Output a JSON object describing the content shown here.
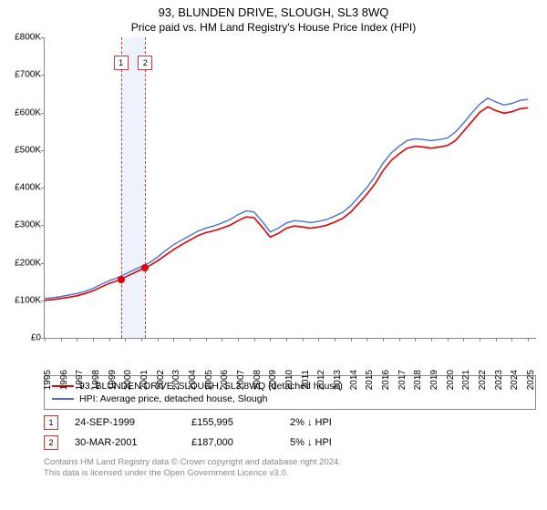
{
  "title": "93, BLUNDEN DRIVE, SLOUGH, SL3 8WQ",
  "subtitle": "Price paid vs. HM Land Registry's House Price Index (HPI)",
  "chart": {
    "type": "line",
    "xlim": [
      1995,
      2025.5
    ],
    "ylim": [
      0,
      800000
    ],
    "ytick_step": 100000,
    "yticks": [
      "£0",
      "£100K",
      "£200K",
      "£300K",
      "£400K",
      "£500K",
      "£600K",
      "£700K",
      "£800K"
    ],
    "xticks": [
      1995,
      1996,
      1997,
      1998,
      1999,
      2000,
      2001,
      2002,
      2003,
      2004,
      2005,
      2006,
      2007,
      2008,
      2009,
      2010,
      2011,
      2012,
      2013,
      2014,
      2015,
      2016,
      2017,
      2018,
      2019,
      2020,
      2021,
      2022,
      2023,
      2024,
      2025
    ],
    "background_color": "#ffffff",
    "grid_color": "#888888",
    "band_color": "#eef2fb",
    "band_range": [
      1999.73,
      2001.25
    ],
    "series": [
      {
        "name": "93, BLUNDEN DRIVE, SLOUGH, SL3 8WQ (detached house)",
        "color": "#e40000",
        "line_width": 1.6,
        "points": [
          [
            1995.0,
            100000
          ],
          [
            1995.5,
            102000
          ],
          [
            1996.0,
            105000
          ],
          [
            1996.5,
            108000
          ],
          [
            1997.0,
            112000
          ],
          [
            1997.5,
            118000
          ],
          [
            1998.0,
            125000
          ],
          [
            1998.5,
            135000
          ],
          [
            1999.0,
            145000
          ],
          [
            1999.5,
            152000
          ],
          [
            1999.73,
            155995
          ],
          [
            2000.0,
            162000
          ],
          [
            2000.5,
            172000
          ],
          [
            2001.0,
            182000
          ],
          [
            2001.25,
            187000
          ],
          [
            2001.5,
            192000
          ],
          [
            2002.0,
            205000
          ],
          [
            2002.5,
            220000
          ],
          [
            2003.0,
            235000
          ],
          [
            2003.5,
            248000
          ],
          [
            2004.0,
            260000
          ],
          [
            2004.5,
            272000
          ],
          [
            2005.0,
            280000
          ],
          [
            2005.5,
            285000
          ],
          [
            2006.0,
            292000
          ],
          [
            2006.5,
            300000
          ],
          [
            2007.0,
            312000
          ],
          [
            2007.5,
            322000
          ],
          [
            2008.0,
            320000
          ],
          [
            2008.5,
            295000
          ],
          [
            2009.0,
            268000
          ],
          [
            2009.5,
            278000
          ],
          [
            2010.0,
            292000
          ],
          [
            2010.5,
            298000
          ],
          [
            2011.0,
            295000
          ],
          [
            2011.5,
            292000
          ],
          [
            2012.0,
            295000
          ],
          [
            2012.5,
            300000
          ],
          [
            2013.0,
            308000
          ],
          [
            2013.5,
            318000
          ],
          [
            2014.0,
            335000
          ],
          [
            2014.5,
            358000
          ],
          [
            2015.0,
            382000
          ],
          [
            2015.5,
            410000
          ],
          [
            2016.0,
            445000
          ],
          [
            2016.5,
            472000
          ],
          [
            2017.0,
            490000
          ],
          [
            2017.5,
            505000
          ],
          [
            2018.0,
            510000
          ],
          [
            2018.5,
            508000
          ],
          [
            2019.0,
            505000
          ],
          [
            2019.5,
            508000
          ],
          [
            2020.0,
            512000
          ],
          [
            2020.5,
            525000
          ],
          [
            2021.0,
            550000
          ],
          [
            2021.5,
            575000
          ],
          [
            2022.0,
            600000
          ],
          [
            2022.5,
            615000
          ],
          [
            2023.0,
            605000
          ],
          [
            2023.5,
            598000
          ],
          [
            2024.0,
            602000
          ],
          [
            2024.5,
            610000
          ],
          [
            2025.0,
            612000
          ]
        ]
      },
      {
        "name": "HPI: Average price, detached house, Slough",
        "color": "#4a6fd4",
        "line_width": 1.4,
        "points": [
          [
            1995.0,
            105000
          ],
          [
            1995.5,
            107000
          ],
          [
            1996.0,
            110000
          ],
          [
            1996.5,
            114000
          ],
          [
            1997.0,
            118000
          ],
          [
            1997.5,
            124000
          ],
          [
            1998.0,
            132000
          ],
          [
            1998.5,
            142000
          ],
          [
            1999.0,
            152000
          ],
          [
            1999.5,
            160000
          ],
          [
            2000.0,
            170000
          ],
          [
            2000.5,
            180000
          ],
          [
            2001.0,
            190000
          ],
          [
            2001.5,
            200000
          ],
          [
            2002.0,
            215000
          ],
          [
            2002.5,
            232000
          ],
          [
            2003.0,
            248000
          ],
          [
            2003.5,
            260000
          ],
          [
            2004.0,
            272000
          ],
          [
            2004.5,
            284000
          ],
          [
            2005.0,
            292000
          ],
          [
            2005.5,
            298000
          ],
          [
            2006.0,
            306000
          ],
          [
            2006.5,
            315000
          ],
          [
            2007.0,
            328000
          ],
          [
            2007.5,
            338000
          ],
          [
            2008.0,
            335000
          ],
          [
            2008.5,
            310000
          ],
          [
            2009.0,
            282000
          ],
          [
            2009.5,
            292000
          ],
          [
            2010.0,
            306000
          ],
          [
            2010.5,
            312000
          ],
          [
            2011.0,
            310000
          ],
          [
            2011.5,
            307000
          ],
          [
            2012.0,
            310000
          ],
          [
            2012.5,
            315000
          ],
          [
            2013.0,
            324000
          ],
          [
            2013.5,
            334000
          ],
          [
            2014.0,
            352000
          ],
          [
            2014.5,
            376000
          ],
          [
            2015.0,
            400000
          ],
          [
            2015.5,
            430000
          ],
          [
            2016.0,
            465000
          ],
          [
            2016.5,
            492000
          ],
          [
            2017.0,
            510000
          ],
          [
            2017.5,
            525000
          ],
          [
            2018.0,
            530000
          ],
          [
            2018.5,
            528000
          ],
          [
            2019.0,
            525000
          ],
          [
            2019.5,
            528000
          ],
          [
            2020.0,
            532000
          ],
          [
            2020.5,
            548000
          ],
          [
            2021.0,
            572000
          ],
          [
            2021.5,
            598000
          ],
          [
            2022.0,
            622000
          ],
          [
            2022.5,
            638000
          ],
          [
            2023.0,
            628000
          ],
          [
            2023.5,
            620000
          ],
          [
            2024.0,
            624000
          ],
          [
            2024.5,
            632000
          ],
          [
            2025.0,
            635000
          ]
        ]
      }
    ],
    "sale_markers": [
      {
        "n": "1",
        "x": 1999.73,
        "y": 155995
      },
      {
        "n": "2",
        "x": 2001.25,
        "y": 187000
      }
    ]
  },
  "legend": [
    {
      "color": "#e40000",
      "label": "93, BLUNDEN DRIVE, SLOUGH, SL3 8WQ (detached house)"
    },
    {
      "color": "#4a6fd4",
      "label": "HPI: Average price, detached house, Slough"
    }
  ],
  "sales": [
    {
      "n": "1",
      "date": "24-SEP-1999",
      "price": "£155,995",
      "diff": "2% ↓ HPI"
    },
    {
      "n": "2",
      "date": "30-MAR-2001",
      "price": "£187,000",
      "diff": "5% ↓ HPI"
    }
  ],
  "footer_line1": "Contains HM Land Registry data © Crown copyright and database right 2024.",
  "footer_line2": "This data is licensed under the Open Government Licence v3.0."
}
